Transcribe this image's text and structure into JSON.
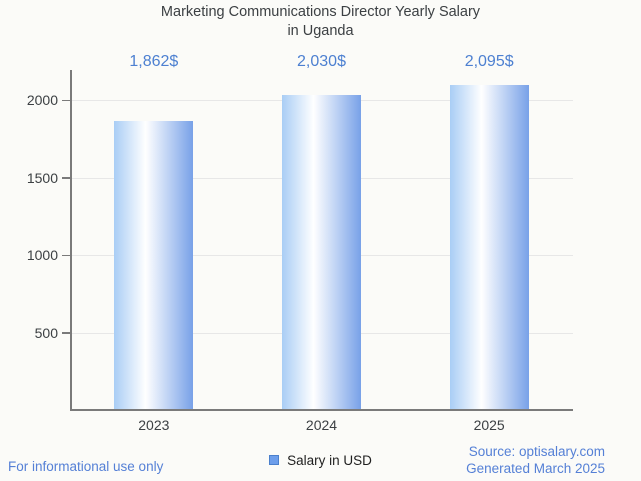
{
  "title": {
    "line1": "Marketing Communications Director Yearly Salary",
    "line2": "in Uganda"
  },
  "chart_data": {
    "type": "bar",
    "title": "Marketing Communications Director Yearly Salary in Uganda",
    "categories": [
      "2023",
      "2024",
      "2025"
    ],
    "series": [
      {
        "name": "Salary in USD",
        "values": [
          1862,
          2030,
          2095
        ]
      }
    ],
    "value_labels": [
      "1,862$",
      "2,030$",
      "2,095$"
    ],
    "xlabel": "",
    "ylabel": "",
    "y_ticks": [
      500,
      1000,
      1500,
      2000
    ],
    "ylim": [
      0,
      2200
    ],
    "grid": true,
    "legend_position": "bottom"
  },
  "legend": {
    "label": "Salary in USD"
  },
  "footer": {
    "disclaimer": "For informational use only",
    "source": "Source: optisalary.com",
    "generated": "Generated March 2025"
  },
  "colors": {
    "background": "#fbfbf8",
    "title_text": "#3c4043",
    "axis_text": "#3c4043",
    "value_label_blue": "#4d80d1",
    "footer_blue": "#5580d6",
    "bar_gradient_left": "#a9cdf5",
    "bar_gradient_right": "#78a1e8",
    "legend_swatch": "#6d9eeb",
    "legend_swatch_border": "#4b80cc",
    "axis_line": "#7a7a7a",
    "gridline": "#e7e7e7"
  }
}
